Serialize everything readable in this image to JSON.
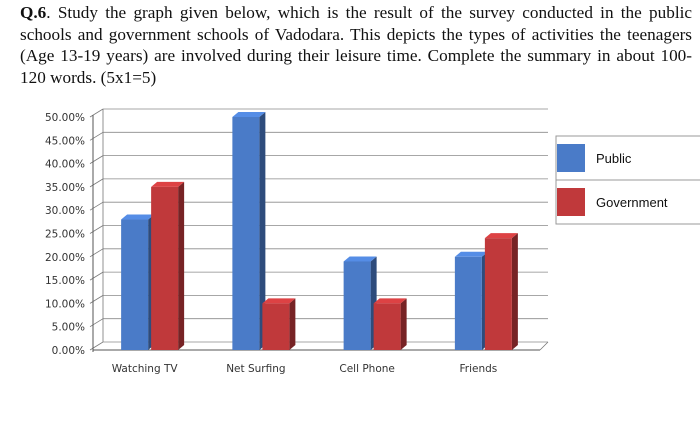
{
  "question": {
    "number": "Q.6",
    "text": ". Study the graph given below, which is the result of the survey conducted in the public schools and government schools of Vadodara. This depicts the types of activities the teenagers (Age 13-19 years) are involved during their leisure time. Complete the summary in about 100-120 words. (5x1=5)"
  },
  "chart_data": {
    "type": "bar",
    "categories": [
      "Watching TV",
      "Net Surfing",
      "Cell Phone",
      "Friends"
    ],
    "series": [
      {
        "name": "Public",
        "color": "#4A7BC8",
        "values": [
          28,
          50,
          19,
          20
        ]
      },
      {
        "name": "Government",
        "color": "#C0393B",
        "values": [
          35,
          10,
          10,
          24
        ]
      }
    ],
    "ylim": [
      0,
      50
    ],
    "yticks": [
      "0.00%",
      "5.00%",
      "10.00%",
      "15.00%",
      "20.00%",
      "25.00%",
      "30.00%",
      "35.00%",
      "40.00%",
      "45.00%",
      "50.00%"
    ],
    "grid": true,
    "legend_position": "right",
    "style": "3d-clustered-column"
  }
}
